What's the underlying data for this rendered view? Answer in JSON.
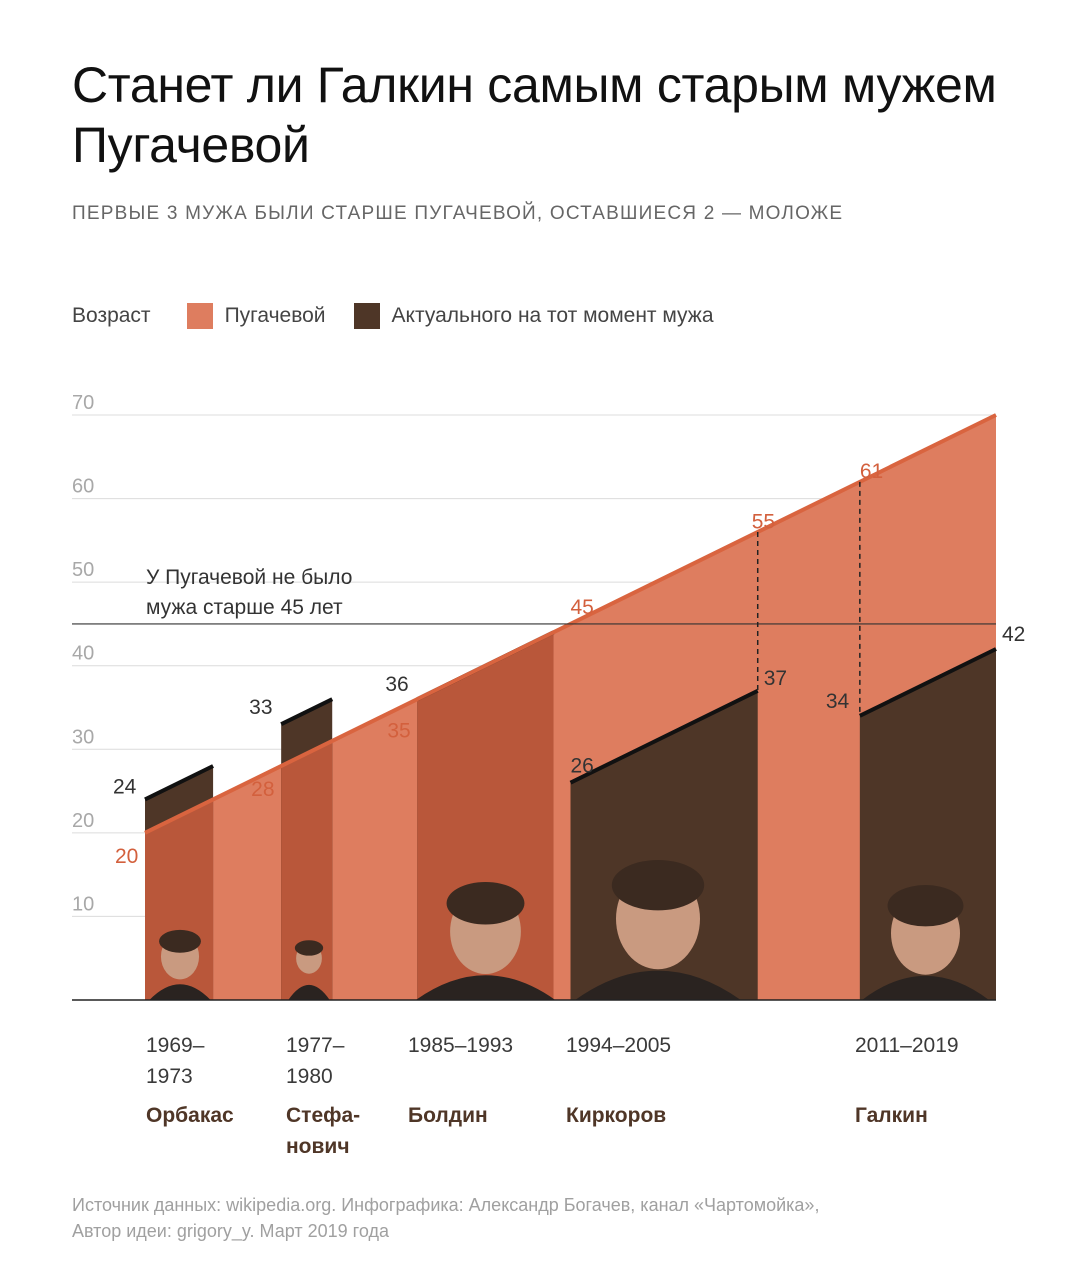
{
  "title": "Станет ли Галкин самым старым мужем Пугачевой",
  "subtitle": "ПЕРВЫЕ 3 МУЖА БЫЛИ СТАРШЕ ПУГАЧЕВОЙ, ОСТАВШИЕСЯ 2 — МОЛОЖЕ",
  "legend": {
    "lead": "Возраст",
    "pugacheva": "Пугачевой",
    "husband": "Актуального на тот момент мужа"
  },
  "colors": {
    "pugacheva_light": "#de7d5f",
    "pugacheva_dark": "#b9573a",
    "husband": "#4e3627",
    "pugacheva_text": "#d3603d",
    "husband_text": "#333333"
  },
  "annotation": "У Пугачевой не было мужа старше 45 лет",
  "source_line1": "Источник данных: wikipedia.org. Инфографика: Александр Богачев, канал «Чартомойка»,",
  "source_line2": "Автор идеи: grigory_y. Март 2019 года",
  "chart_data": {
    "type": "area",
    "ylim": [
      0,
      70
    ],
    "yticks": [
      10,
      20,
      30,
      40,
      50,
      60,
      70
    ],
    "xlim": [
      1969,
      2019
    ],
    "reference_line": 45,
    "pugacheva_age_line": [
      [
        1969,
        20
      ],
      [
        2019,
        70
      ]
    ],
    "marriages": [
      {
        "period": "1969–1973",
        "name": "Орбакас",
        "start": 1969,
        "end": 1973,
        "pugacheva_age": 20,
        "husband_age_start": 24,
        "husband_age_end": 28
      },
      {
        "period": "1977–1980",
        "name": "Стефа-нович",
        "start": 1977,
        "end": 1980,
        "pugacheva_age": 28,
        "husband_age_start": 33,
        "husband_age_end": 36
      },
      {
        "period": "1985–1993",
        "name": "Болдин",
        "start": 1985,
        "end": 1993,
        "pugacheva_age": 35,
        "husband_age_start": 36,
        "husband_age_end": 44
      },
      {
        "period": "1994–2005",
        "name": "Киркоров",
        "start": 1994,
        "end": 2005,
        "pugacheva_age": 45,
        "husband_age_start": 26,
        "husband_age_end": 37
      },
      {
        "period": "2011–2019",
        "name": "Галкин",
        "start": 2011,
        "end": 2019,
        "pugacheva_age": 61,
        "husband_age_start": 34,
        "husband_age_end": 42
      }
    ],
    "labels": {
      "pugacheva": [
        {
          "x": 1969,
          "y": 20,
          "text": "20"
        },
        {
          "x": 1977,
          "y": 28,
          "text": "28"
        },
        {
          "x": 1985,
          "y": 35,
          "text": "35"
        },
        {
          "x": 1994,
          "y": 45,
          "text": "45"
        },
        {
          "x": 2005,
          "y": 55,
          "text": "55"
        },
        {
          "x": 2011,
          "y": 61,
          "text": "61"
        }
      ],
      "husband": [
        {
          "x": 1969,
          "y": 24,
          "text": "24"
        },
        {
          "x": 1977,
          "y": 33,
          "text": "33"
        },
        {
          "x": 1985,
          "y": 36,
          "text": "36"
        },
        {
          "x": 1994,
          "y": 26,
          "text": "26"
        },
        {
          "x": 2005,
          "y": 37,
          "text": "37"
        },
        {
          "x": 2011,
          "y": 34,
          "text": "34"
        },
        {
          "x": 2019,
          "y": 42,
          "text": "42"
        }
      ]
    }
  }
}
